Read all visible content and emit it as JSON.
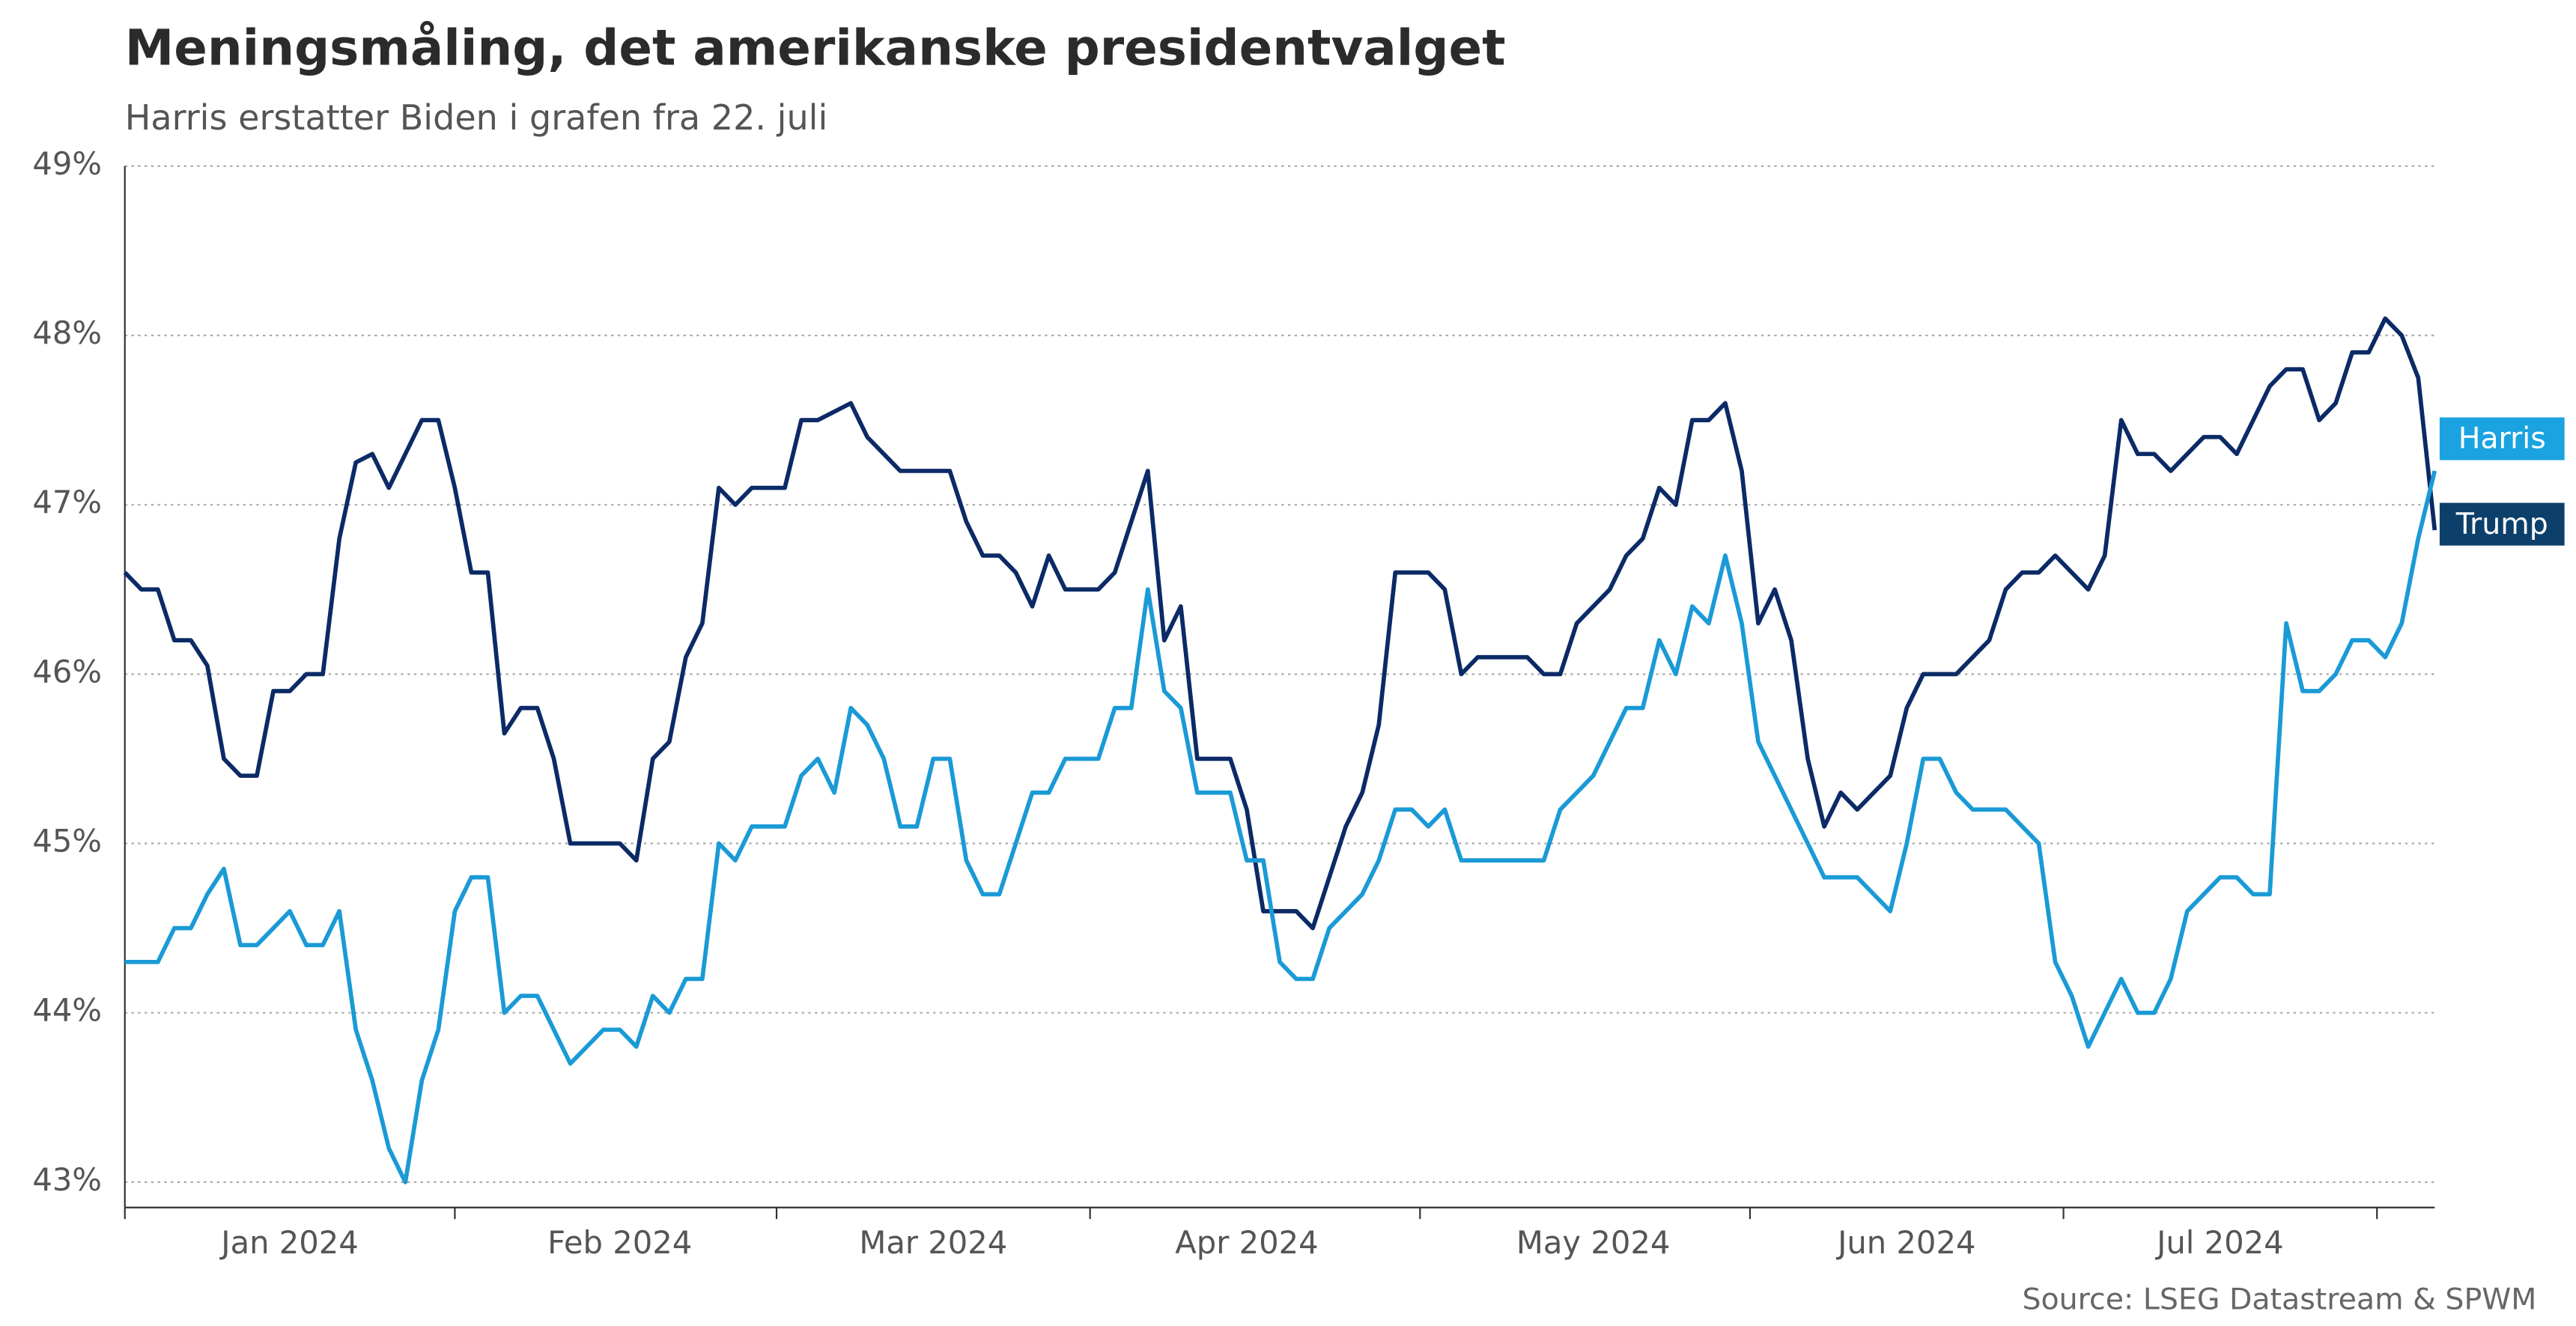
{
  "chart_data": {
    "type": "line",
    "title": "Meningsmåling, det amerikanske presidentvalget",
    "subtitle": "Harris erstatter Biden i grafen fra 22. juli",
    "source": "Source: LSEG Datastream & SPWM",
    "categories": [
      null,
      null,
      null,
      null,
      null,
      null,
      null,
      null,
      null,
      null,
      "Jan 2024",
      null,
      null,
      null,
      null,
      null,
      null,
      null,
      null,
      null,
      null,
      null,
      null,
      null,
      null,
      null,
      null,
      null,
      null,
      null,
      "Feb 2024",
      null,
      null,
      null,
      null,
      null,
      null,
      null,
      null,
      null,
      null,
      null,
      null,
      null,
      null,
      null,
      null,
      null,
      null,
      "Mar 2024",
      null,
      null,
      null,
      null,
      null,
      null,
      null,
      null,
      null,
      null,
      null,
      null,
      null,
      null,
      null,
      null,
      null,
      null,
      "Apr 2024",
      null,
      null,
      null,
      null,
      null,
      null,
      null,
      null,
      null,
      null,
      null,
      null,
      null,
      null,
      null,
      null,
      null,
      null,
      null,
      null,
      "May 2024",
      null,
      null,
      null,
      null,
      null,
      null,
      null,
      null,
      null,
      null,
      null,
      null,
      null,
      null,
      null,
      null,
      null,
      null,
      "Jun 2024",
      null,
      null,
      null,
      null,
      null,
      null,
      null,
      null,
      null,
      null,
      null,
      null,
      null,
      null,
      null,
      null,
      null,
      null,
      "Jul 2024",
      null,
      null,
      null,
      null,
      null,
      null,
      null,
      null,
      null,
      null,
      null,
      null,
      null
    ],
    "series": [
      {
        "name": "Trump",
        "color": "#0b2a66",
        "label_color": "#0d3f6b",
        "values": [
          46.6,
          46.5,
          46.5,
          46.2,
          46.2,
          46.05,
          45.5,
          45.4,
          45.4,
          45.9,
          45.9,
          46.0,
          46.0,
          46.8,
          47.25,
          47.3,
          47.1,
          47.3,
          47.5,
          47.5,
          47.1,
          46.6,
          46.6,
          45.65,
          45.8,
          45.8,
          45.5,
          45.0,
          45.0,
          45.0,
          45.0,
          44.9,
          45.5,
          45.6,
          46.1,
          46.3,
          47.1,
          47.0,
          47.1,
          47.1,
          47.1,
          47.5,
          47.5,
          47.55,
          47.6,
          47.4,
          47.3,
          47.2,
          47.2,
          47.2,
          47.2,
          46.9,
          46.7,
          46.7,
          46.6,
          46.4,
          46.7,
          46.5,
          46.5,
          46.5,
          46.6,
          46.9,
          47.2,
          46.2,
          46.4,
          45.5,
          45.5,
          45.5,
          45.2,
          44.6,
          44.6,
          44.6,
          44.5,
          44.8,
          45.1,
          45.3,
          45.7,
          46.6,
          46.6,
          46.6,
          46.5,
          46.0,
          46.1,
          46.1,
          46.1,
          46.1,
          46.0,
          46.0,
          46.3,
          46.4,
          46.5,
          46.7,
          46.8,
          47.1,
          47.0,
          47.5,
          47.5,
          47.6,
          47.2,
          46.3,
          46.5,
          46.2,
          45.5,
          45.1,
          45.3,
          45.2,
          45.3,
          45.4,
          45.8,
          46.0,
          46.0,
          46.0,
          46.1,
          46.2,
          46.5,
          46.6,
          46.6,
          46.7,
          46.6,
          46.5,
          46.7,
          47.5,
          47.3,
          47.3,
          47.2,
          47.3,
          47.4,
          47.4,
          47.3,
          47.5,
          47.7,
          47.8,
          47.8,
          47.5,
          47.6,
          47.9,
          47.9,
          48.1,
          48.0,
          47.75,
          46.85
        ]
      },
      {
        "name": "Harris",
        "color": "#1a9ad6",
        "label_color": "#1aa3e0",
        "values": [
          44.3,
          44.3,
          44.3,
          44.5,
          44.5,
          44.7,
          44.85,
          44.4,
          44.4,
          44.5,
          44.6,
          44.4,
          44.4,
          44.6,
          43.9,
          43.6,
          43.2,
          43.0,
          43.6,
          43.9,
          44.6,
          44.8,
          44.8,
          44.0,
          44.1,
          44.1,
          43.9,
          43.7,
          43.8,
          43.9,
          43.9,
          43.8,
          44.1,
          44.0,
          44.2,
          44.2,
          45.0,
          44.9,
          45.1,
          45.1,
          45.1,
          45.4,
          45.5,
          45.3,
          45.8,
          45.7,
          45.5,
          45.1,
          45.1,
          45.5,
          45.5,
          44.9,
          44.7,
          44.7,
          45.0,
          45.3,
          45.3,
          45.5,
          45.5,
          45.5,
          45.8,
          45.8,
          46.5,
          45.9,
          45.8,
          45.3,
          45.3,
          45.3,
          44.9,
          44.9,
          44.3,
          44.2,
          44.2,
          44.5,
          44.6,
          44.7,
          44.9,
          45.2,
          45.2,
          45.1,
          45.2,
          44.9,
          44.9,
          44.9,
          44.9,
          44.9,
          44.9,
          45.2,
          45.3,
          45.4,
          45.6,
          45.8,
          45.8,
          46.2,
          46.0,
          46.4,
          46.3,
          46.7,
          46.3,
          45.6,
          45.4,
          45.2,
          45.0,
          44.8,
          44.8,
          44.8,
          44.7,
          44.6,
          45.0,
          45.5,
          45.5,
          45.3,
          45.2,
          45.2,
          45.2,
          45.1,
          45.0,
          44.3,
          44.1,
          43.8,
          44.0,
          44.2,
          44.0,
          44.0,
          44.2,
          44.6,
          44.7,
          44.8,
          44.8,
          44.7,
          44.7,
          46.3,
          45.9,
          45.9,
          46.0,
          46.2,
          46.2,
          46.1,
          46.3,
          46.8,
          47.2
        ]
      }
    ],
    "ylim": [
      42.85,
      49
    ],
    "yticks": [
      {
        "value": 43,
        "label": "43%"
      },
      {
        "value": 44,
        "label": "44%"
      },
      {
        "value": 45,
        "label": "45%"
      },
      {
        "value": 46,
        "label": "46%"
      },
      {
        "value": 47,
        "label": "47%"
      },
      {
        "value": 48,
        "label": "48%"
      },
      {
        "value": 49,
        "label": "49%"
      }
    ],
    "grid": true
  }
}
